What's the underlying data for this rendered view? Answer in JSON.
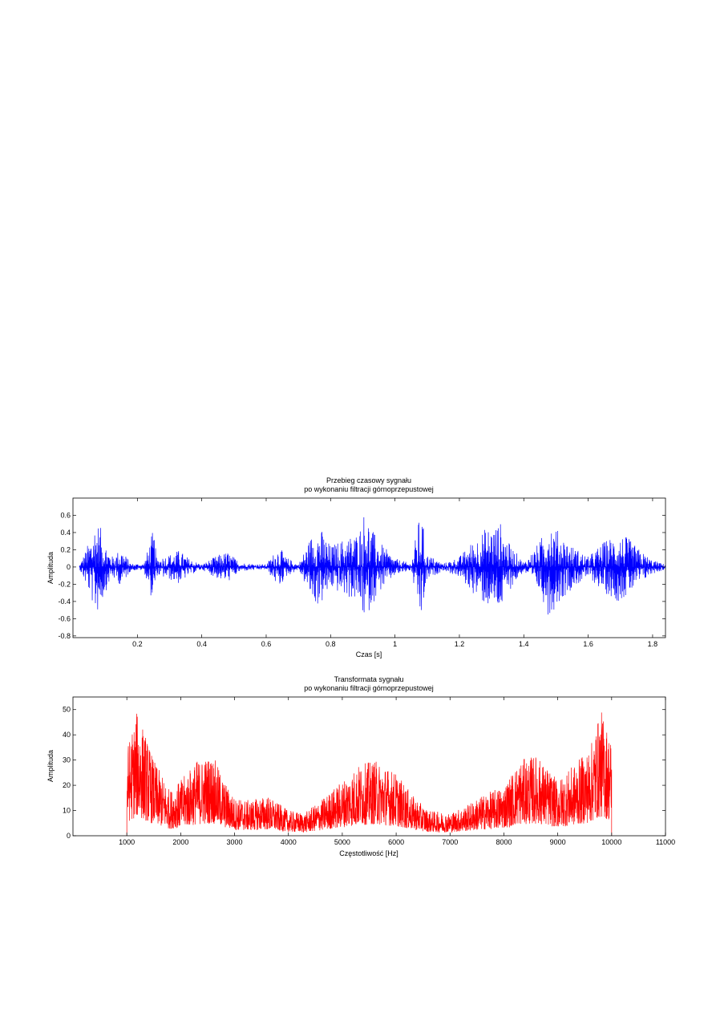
{
  "chart_data": [
    {
      "type": "line",
      "title": [
        "Przebieg czasowy sygnału",
        "po wykonaniu filtracji górnoprzepustowej"
      ],
      "xlabel": "Czas [s]",
      "ylabel": "Amplituda",
      "xlim": [
        0.0,
        1.84
      ],
      "ylim": [
        -0.82,
        0.8
      ],
      "xticks": [
        0.2,
        0.4,
        0.6,
        0.8,
        1,
        1.2,
        1.4,
        1.6,
        1.8
      ],
      "xtick_labels": [
        "0.2",
        "0.4",
        "0.6",
        "0.8",
        "1",
        "1.2",
        "1.4",
        "1.6",
        "1.8"
      ],
      "yticks": [
        -0.8,
        -0.6,
        -0.4,
        -0.2,
        0,
        0.2,
        0.4,
        0.6
      ],
      "ytick_labels": [
        "-0.8",
        "-0.6",
        "-0.4",
        "-0.2",
        "0",
        "0.2",
        "0.4",
        "0.6"
      ],
      "color": "#0000ff",
      "series": [
        {
          "x": [
            0.02,
            0.05,
            0.07,
            0.08,
            0.1,
            0.12,
            0.15,
            0.18,
            0.22,
            0.25,
            0.26,
            0.3,
            0.33,
            0.36,
            0.4,
            0.45,
            0.48,
            0.52,
            0.6,
            0.64,
            0.66,
            0.7,
            0.75,
            0.77,
            0.8,
            0.85,
            0.88,
            0.9,
            0.91,
            0.92,
            0.95,
            1.0,
            1.05,
            1.08,
            1.1,
            1.15,
            1.2,
            1.24,
            1.28,
            1.31,
            1.33,
            1.35,
            1.4,
            1.45,
            1.48,
            1.5,
            1.55,
            1.6,
            1.65,
            1.69,
            1.72,
            1.76,
            1.8,
            1.84
          ],
          "env": [
            0.02,
            0.3,
            0.55,
            0.52,
            0.3,
            0.12,
            0.22,
            0.04,
            0.04,
            0.45,
            0.1,
            0.15,
            0.2,
            0.1,
            0.03,
            0.14,
            0.18,
            0.05,
            0.03,
            0.25,
            0.12,
            0.03,
            0.45,
            0.45,
            0.25,
            0.35,
            0.4,
            0.55,
            0.82,
            0.5,
            0.3,
            0.1,
            0.04,
            0.68,
            0.15,
            0.04,
            0.12,
            0.3,
            0.45,
            0.5,
            0.52,
            0.3,
            0.05,
            0.3,
            0.6,
            0.45,
            0.25,
            0.12,
            0.3,
            0.4,
            0.35,
            0.2,
            0.08,
            0.03
          ]
        }
      ]
    },
    {
      "type": "line",
      "title": [
        "Transformata sygnału",
        "po wykonaniu filtracji górnoprzepustowej"
      ],
      "xlabel": "Częstotliwość [Hz]",
      "ylabel": "Amplituda",
      "xlim": [
        0,
        11000
      ],
      "ylim": [
        0,
        55
      ],
      "xticks": [
        1000,
        2000,
        3000,
        4000,
        5000,
        6000,
        7000,
        8000,
        9000,
        10000,
        11000
      ],
      "xtick_labels": [
        "1000",
        "2000",
        "3000",
        "4000",
        "5000",
        "6000",
        "7000",
        "8000",
        "9000",
        "10000",
        "11000"
      ],
      "yticks": [
        0,
        10,
        20,
        30,
        40,
        50
      ],
      "ytick_labels": [
        "0",
        "10",
        "20",
        "30",
        "40",
        "50"
      ],
      "color": "#ff0000",
      "series": [
        {
          "x": [
            1000,
            1200,
            1500,
            1800,
            2000,
            2300,
            2600,
            2800,
            3000,
            3300,
            3600,
            4000,
            4300,
            4600,
            5000,
            5300,
            5600,
            6000,
            6300,
            6600,
            7000,
            7300,
            7600,
            8000,
            8300,
            8600,
            9000,
            9300,
            9600,
            9800,
            10000
          ],
          "env": [
            35,
            50,
            30,
            18,
            22,
            30,
            32,
            22,
            15,
            14,
            16,
            10,
            9,
            14,
            22,
            28,
            30,
            25,
            16,
            10,
            9,
            12,
            16,
            20,
            30,
            32,
            22,
            28,
            35,
            50,
            38
          ]
        }
      ]
    }
  ]
}
